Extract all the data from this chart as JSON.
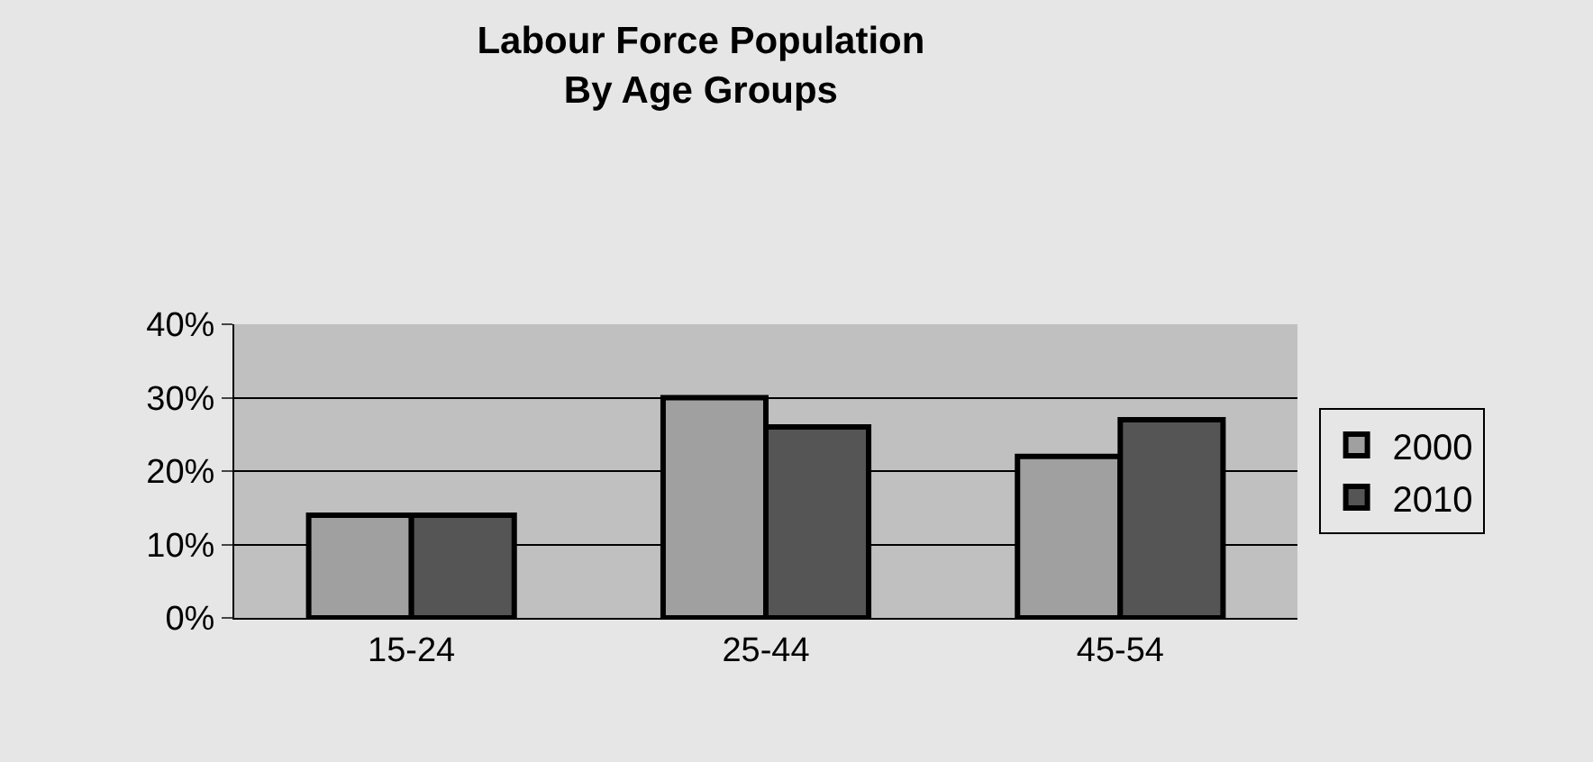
{
  "chart_data": {
    "type": "bar",
    "title": "Labour Force Population\nBy Age Groups",
    "categories": [
      "15-24",
      "25-44",
      "45-54"
    ],
    "series": [
      {
        "name": "2000",
        "color": "#a0a0a0",
        "values": [
          14,
          30,
          22
        ]
      },
      {
        "name": "2010",
        "color": "#555555",
        "values": [
          14,
          26,
          27
        ]
      }
    ],
    "ylim": [
      0,
      40
    ],
    "yticks": [
      {
        "value": 0,
        "label": "0%"
      },
      {
        "value": 10,
        "label": "10%"
      },
      {
        "value": 20,
        "label": "20%"
      },
      {
        "value": 30,
        "label": "30%"
      },
      {
        "value": 40,
        "label": "40%"
      }
    ],
    "grid": "y",
    "legend": "right"
  }
}
